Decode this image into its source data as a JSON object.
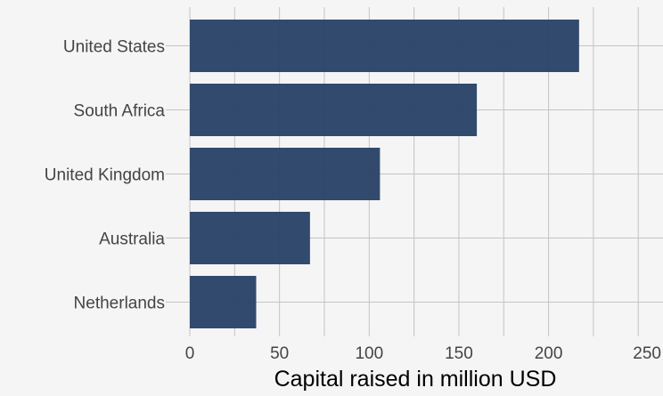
{
  "chart_data": {
    "type": "bar",
    "orientation": "horizontal",
    "title": "",
    "xlabel": "Capital raised in million USD",
    "ylabel": "",
    "categories": [
      "United States",
      "South Africa",
      "United Kingdom",
      "Australia",
      "Netherlands"
    ],
    "values": [
      217,
      160,
      106,
      67,
      37
    ],
    "xlim": [
      0,
      260
    ],
    "x_ticks": [
      "0",
      "50",
      "100",
      "150",
      "200",
      "250"
    ],
    "grid": true,
    "legend": "none",
    "colors": {
      "bar": "#2b4468",
      "background": "#f5f5f5",
      "grid": "#c4c4c4"
    }
  }
}
